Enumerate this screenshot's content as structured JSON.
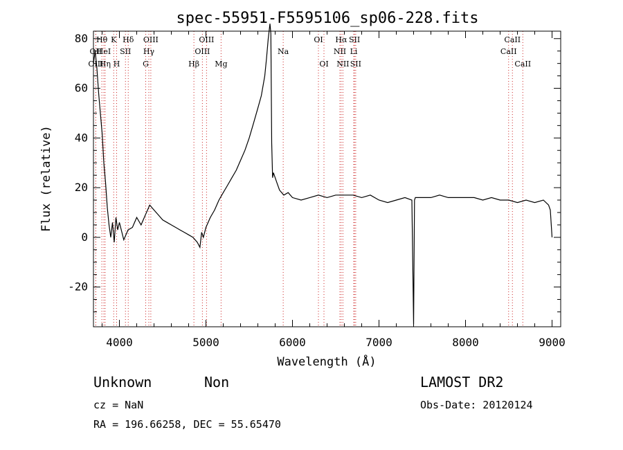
{
  "chart_data": {
    "type": "line",
    "title": "spec-55951-F5595106_sp06-228.fits",
    "xlabel": "Wavelength (Å)",
    "ylabel": "Flux (relative)",
    "xlim": [
      3700,
      9100
    ],
    "ylim": [
      -36,
      83
    ],
    "xticks": [
      4000,
      5000,
      6000,
      7000,
      8000,
      9000
    ],
    "yticks": [
      -20,
      0,
      20,
      40,
      60,
      80
    ],
    "grid": false,
    "spectrum": {
      "x": [
        3700,
        3720,
        3740,
        3760,
        3780,
        3800,
        3820,
        3840,
        3860,
        3880,
        3900,
        3920,
        3940,
        3960,
        3980,
        4000,
        4050,
        4100,
        4150,
        4200,
        4250,
        4300,
        4350,
        4400,
        4450,
        4500,
        4550,
        4600,
        4650,
        4700,
        4750,
        4800,
        4850,
        4900,
        4930,
        4950,
        4970,
        5000,
        5050,
        5100,
        5150,
        5200,
        5250,
        5300,
        5350,
        5400,
        5450,
        5500,
        5550,
        5600,
        5640,
        5680,
        5700,
        5720,
        5740,
        5750,
        5760,
        5770,
        5780,
        5800,
        5820,
        5850,
        5900,
        5950,
        6000,
        6100,
        6200,
        6300,
        6400,
        6500,
        6600,
        6700,
        6800,
        6900,
        7000,
        7100,
        7200,
        7300,
        7380,
        7400,
        7410,
        7420,
        7500,
        7600,
        7700,
        7800,
        7900,
        8000,
        8100,
        8200,
        8300,
        8400,
        8500,
        8600,
        8700,
        8800,
        8900,
        8960,
        8980,
        9000
      ],
      "y": [
        70,
        75,
        68,
        58,
        50,
        42,
        30,
        22,
        12,
        5,
        0,
        6,
        -2,
        8,
        3,
        6,
        -1,
        3,
        4,
        8,
        5,
        9,
        13,
        11,
        9,
        7,
        6,
        5,
        4,
        3,
        2,
        1,
        0,
        -2,
        -4,
        2,
        0,
        4,
        8,
        11,
        15,
        18,
        21,
        24,
        27,
        31,
        35,
        40,
        46,
        52,
        57,
        65,
        72,
        80,
        86,
        82,
        38,
        24,
        26,
        24,
        22,
        19,
        17,
        18,
        16,
        15,
        16,
        17,
        16,
        17,
        17,
        17,
        16,
        17,
        15,
        14,
        15,
        16,
        15,
        -35,
        15,
        16,
        16,
        16,
        17,
        16,
        16,
        16,
        16,
        15,
        16,
        15,
        15,
        14,
        15,
        14,
        15,
        13,
        11,
        0
      ]
    },
    "lines": [
      {
        "label": "Hθ",
        "x": 3797,
        "row": 1
      },
      {
        "label": "OII",
        "x": 3727,
        "row": 2
      },
      {
        "label": "HeI",
        "x": 3820,
        "row": 2
      },
      {
        "label": "OIII",
        "x": 3727,
        "row": 3
      },
      {
        "label": "Hη",
        "x": 3835,
        "row": 3
      },
      {
        "label": "K",
        "x": 3934,
        "row": 1
      },
      {
        "label": "SII",
        "x": 4070,
        "row": 2
      },
      {
        "label": "H",
        "x": 3968,
        "row": 3
      },
      {
        "label": "Hδ",
        "x": 4102,
        "row": 1
      },
      {
        "label": "OIII",
        "x": 4363,
        "row": 1
      },
      {
        "label": "Hγ",
        "x": 4340,
        "row": 2
      },
      {
        "label": "G",
        "x": 4304,
        "row": 3
      },
      {
        "label": "Hβ",
        "x": 4861,
        "row": 3
      },
      {
        "label": "OIII",
        "x": 5007,
        "row": 1
      },
      {
        "label": "OIII",
        "x": 4959,
        "row": 2
      },
      {
        "label": "Mg",
        "x": 5175,
        "row": 3
      },
      {
        "label": "Na",
        "x": 5893,
        "row": 2
      },
      {
        "label": "OI",
        "x": 6300,
        "row": 1
      },
      {
        "label": "OI",
        "x": 6364,
        "row": 3
      },
      {
        "label": "Hα",
        "x": 6563,
        "row": 1
      },
      {
        "label": "SII",
        "x": 6717,
        "row": 1
      },
      {
        "label": "NII",
        "x": 6548,
        "row": 2
      },
      {
        "label": "Li",
        "x": 6708,
        "row": 2
      },
      {
        "label": "NII",
        "x": 6583,
        "row": 3
      },
      {
        "label": "SII",
        "x": 6731,
        "row": 3
      },
      {
        "label": "CaII",
        "x": 8542,
        "row": 1
      },
      {
        "label": "CaII",
        "x": 8498,
        "row": 2
      },
      {
        "label": "CaII",
        "x": 8662,
        "row": 3
      }
    ]
  },
  "info": {
    "class": "Unknown",
    "subclass": "Non",
    "survey": "LAMOST DR2",
    "cz": "cz = NaN",
    "obs_date": "Obs-Date: 20120124",
    "radec": "RA = 196.66258, DEC =  55.65470"
  },
  "colors": {
    "spectrum": "#000000",
    "line_marker": "#cc2222",
    "axes": "#000000"
  }
}
